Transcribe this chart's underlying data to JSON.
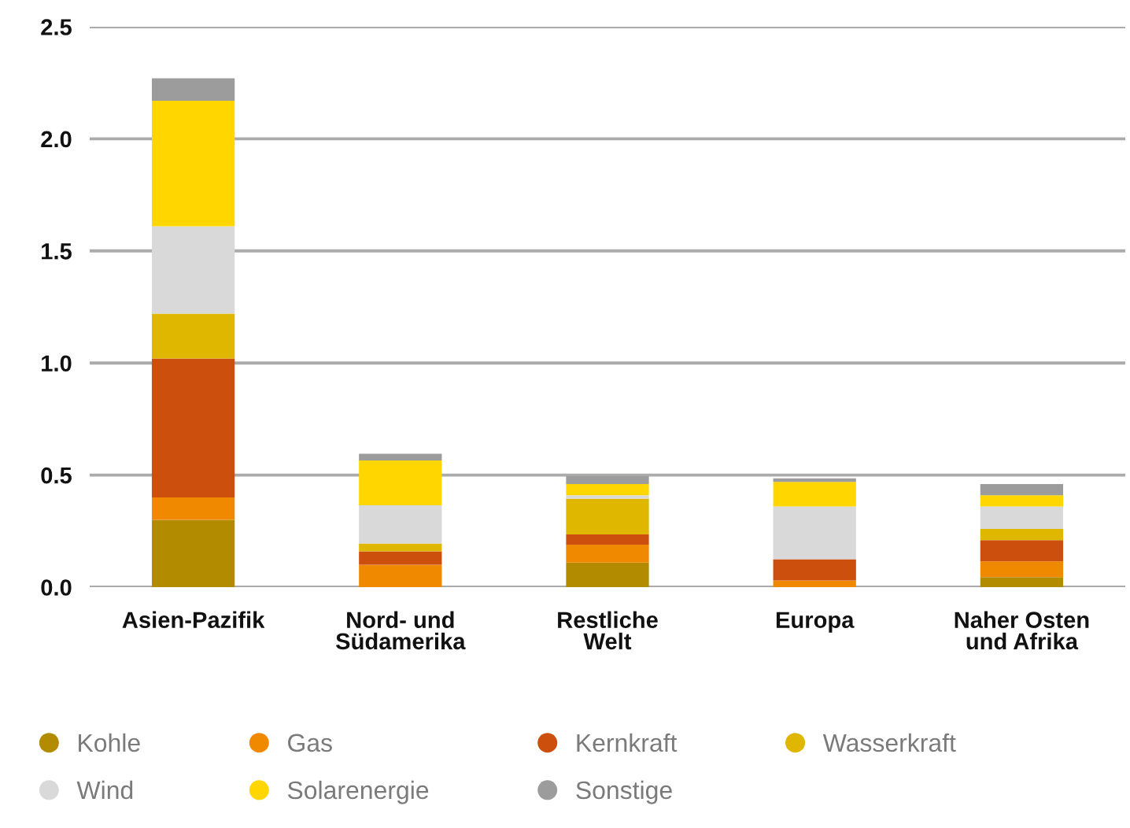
{
  "chart_data": {
    "type": "bar",
    "stacked": true,
    "categories": [
      "Asien-Pazifik",
      "Nord- und\nSüdamerika",
      "Restliche\nWelt",
      "Europa",
      "Naher Osten\nund Afrika"
    ],
    "series": [
      {
        "name": "Kohle",
        "color": "#b38b00",
        "values": [
          0.3,
          null,
          0.11,
          null,
          0.045
        ]
      },
      {
        "name": "Gas",
        "color": "#f08800",
        "values": [
          0.1,
          0.1,
          0.08,
          0.03,
          0.07
        ]
      },
      {
        "name": "Kernkraft",
        "color": "#cc4f0e",
        "values": [
          0.62,
          0.06,
          0.045,
          0.095,
          0.095
        ]
      },
      {
        "name": "Wasserkraft",
        "color": "#dfb600",
        "values": [
          0.2,
          0.035,
          0.16,
          null,
          0.05
        ]
      },
      {
        "name": "Wind",
        "color": "#d9d9d9",
        "values": [
          0.39,
          0.17,
          0.015,
          0.235,
          0.1
        ]
      },
      {
        "name": "Solarenergie",
        "color": "#ffd600",
        "values": [
          0.56,
          0.2,
          0.05,
          0.11,
          0.05
        ]
      },
      {
        "name": "Sonstige",
        "color": "#9c9c9c",
        "values": [
          0.1,
          0.03,
          0.035,
          0.015,
          0.05
        ]
      }
    ],
    "ylim": [
      0,
      2.5
    ],
    "yticks": [
      {
        "value": 0,
        "label": "0.0"
      },
      0.5,
      {
        "value": 1,
        "label": "1.0"
      },
      1.5,
      {
        "value": 2,
        "label": "2.0"
      },
      2.5
    ],
    "grid": "y",
    "legend": "bottom"
  }
}
